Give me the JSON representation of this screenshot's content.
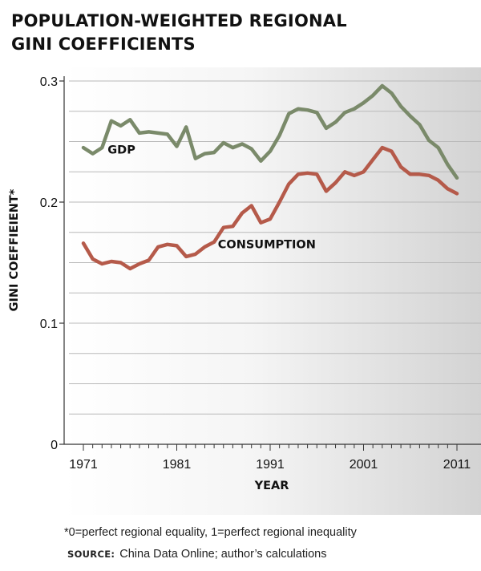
{
  "title_lines": [
    "POPULATION-WEIGHTED REGIONAL",
    "GINI COEFFICIENTS"
  ],
  "chart_data": {
    "type": "line",
    "title": "POPULATION-WEIGHTED REGIONAL GINI COEFFICIENTS",
    "xlabel": "YEAR",
    "ylabel": "GINI COEFFIEIENT*",
    "xlim": [
      1970,
      2012
    ],
    "ylim": [
      0,
      0.3
    ],
    "x_ticks": [
      1971,
      1981,
      1991,
      2001,
      2011
    ],
    "y_ticks": [
      0,
      0.1,
      0.2,
      0.3
    ],
    "y_tick_labels": [
      "0",
      "0.1",
      "0.2",
      "0.3"
    ],
    "grid": true,
    "grid_step": 0.025,
    "x": [
      1971,
      1972,
      1973,
      1974,
      1975,
      1976,
      1977,
      1978,
      1979,
      1980,
      1981,
      1982,
      1983,
      1984,
      1985,
      1986,
      1987,
      1988,
      1989,
      1990,
      1991,
      1992,
      1993,
      1994,
      1995,
      1996,
      1997,
      1998,
      1999,
      2000,
      2001,
      2002,
      2003,
      2004,
      2005,
      2006,
      2007,
      2008,
      2009,
      2010,
      2011
    ],
    "series": [
      {
        "name": "GDP",
        "color": "#7a8a6a",
        "values": [
          0.245,
          0.24,
          0.245,
          0.267,
          0.263,
          0.268,
          0.257,
          0.258,
          0.257,
          0.256,
          0.246,
          0.262,
          0.236,
          0.24,
          0.241,
          0.249,
          0.245,
          0.248,
          0.244,
          0.234,
          0.242,
          0.255,
          0.273,
          0.277,
          0.276,
          0.274,
          0.261,
          0.266,
          0.274,
          0.277,
          0.282,
          0.288,
          0.296,
          0.29,
          0.279,
          0.271,
          0.264,
          0.251,
          0.245,
          0.231,
          0.22
        ]
      },
      {
        "name": "CONSUMPTION",
        "color": "#b55a4a",
        "values": [
          0.166,
          0.153,
          0.149,
          0.151,
          0.15,
          0.145,
          0.149,
          0.152,
          0.163,
          0.165,
          0.164,
          0.155,
          0.157,
          0.163,
          0.167,
          0.179,
          0.18,
          0.191,
          0.197,
          0.183,
          0.186,
          0.2,
          0.215,
          0.223,
          0.224,
          0.223,
          0.209,
          0.216,
          0.225,
          0.222,
          0.225,
          0.235,
          0.245,
          0.242,
          0.229,
          0.223,
          0.223,
          0.222,
          0.218,
          0.211,
          0.207
        ]
      }
    ],
    "series_labels": [
      {
        "text": "GDP",
        "x": 1973.6,
        "y": 0.24
      },
      {
        "text": "CONSUMPTION",
        "x": 1985.4,
        "y": 0.162
      }
    ]
  },
  "footnote": "*0=perfect regional equality, 1=perfect regional inequality",
  "source": {
    "label": "SOURCE:",
    "text": "China Data Online; author’s calculations"
  }
}
